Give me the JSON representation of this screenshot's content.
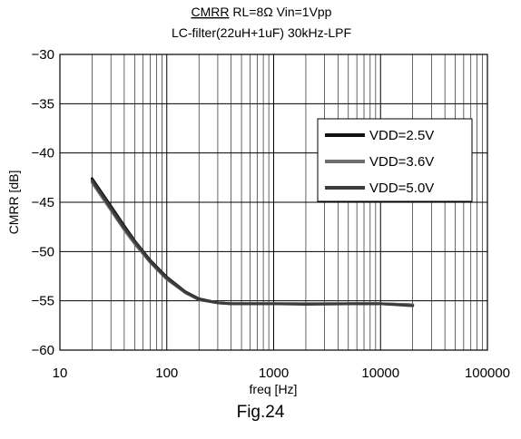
{
  "chart_data": {
    "type": "line",
    "title_underlined": "CMRR",
    "title_rest": " RL=8Ω  Vin=1Vpp",
    "subtitle": "LC-filter(22uH+1uF) 30kHz-LPF",
    "xlabel": "freq [Hz]",
    "ylabel": "CMRR [dB]",
    "x_scale": "log",
    "xlim": [
      10,
      100000
    ],
    "ylim": [
      -60,
      -30
    ],
    "x_ticks": [
      10,
      100,
      1000,
      10000,
      100000
    ],
    "x_tick_labels": [
      "10",
      "100",
      "1000",
      "10000",
      "100000"
    ],
    "y_ticks": [
      -30,
      -35,
      -40,
      -45,
      -50,
      -55,
      -60
    ],
    "y_tick_labels": [
      "−30",
      "−35",
      "−40",
      "−45",
      "−50",
      "−55",
      "−60"
    ],
    "grid": true,
    "legend_position": "right",
    "x": [
      20,
      30,
      40,
      50,
      70,
      100,
      150,
      200,
      300,
      400,
      500,
      700,
      1000,
      2000,
      5000,
      10000,
      20000
    ],
    "series": [
      {
        "name": "VDD=2.5V",
        "color": "#111111",
        "values": [
          -42.6,
          -45.4,
          -47.4,
          -48.9,
          -50.9,
          -52.6,
          -54.1,
          -54.8,
          -55.2,
          -55.3,
          -55.3,
          -55.3,
          -55.3,
          -55.3,
          -55.3,
          -55.3,
          -55.4
        ]
      },
      {
        "name": "VDD=3.6V",
        "color": "#6e6e6e",
        "values": [
          -43.0,
          -45.8,
          -47.8,
          -49.2,
          -51.1,
          -52.8,
          -54.2,
          -54.9,
          -55.2,
          -55.3,
          -55.3,
          -55.3,
          -55.3,
          -55.3,
          -55.3,
          -55.3,
          -55.4
        ]
      },
      {
        "name": "VDD=5.0V",
        "color": "#3c3c3c",
        "values": [
          -42.8,
          -45.6,
          -47.6,
          -49.0,
          -51.0,
          -52.7,
          -54.15,
          -54.85,
          -55.2,
          -55.3,
          -55.3,
          -55.3,
          -55.3,
          -55.35,
          -55.3,
          -55.3,
          -55.5
        ]
      }
    ]
  },
  "caption": "Fig.24"
}
